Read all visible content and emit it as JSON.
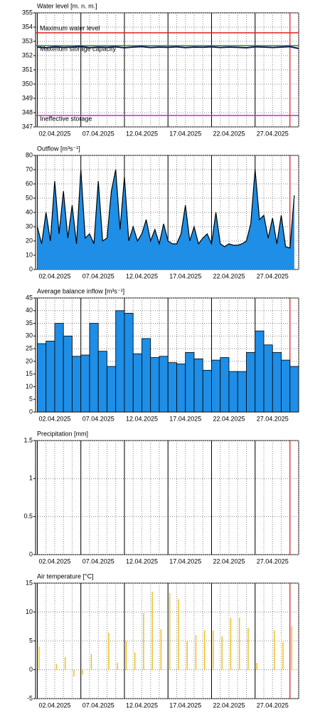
{
  "chart_data": [
    {
      "type": "line",
      "title": "Water level [m. n. m.]",
      "x": [
        0,
        1,
        2,
        3,
        4,
        5,
        6,
        7,
        8,
        9,
        10,
        11,
        12,
        13,
        14,
        15,
        16,
        17,
        18,
        19,
        20,
        21,
        22,
        23,
        24,
        25,
        26,
        27,
        28,
        29,
        30
      ],
      "values": [
        352.6,
        352.55,
        352.62,
        352.58,
        352.6,
        352.64,
        352.56,
        352.6,
        352.58,
        352.62,
        352.55,
        352.6,
        352.63,
        352.57,
        352.6,
        352.58,
        352.62,
        352.56,
        352.6,
        352.59,
        352.62,
        352.57,
        352.6,
        352.58,
        352.55,
        352.62,
        352.6,
        352.57,
        352.6,
        352.63,
        352.5
      ],
      "color": "#14145a",
      "ylim": [
        347,
        355
      ],
      "yticks": [
        347,
        348,
        349,
        350,
        351,
        352,
        353,
        354,
        355
      ],
      "xlim": [
        -0.2,
        30
      ],
      "xticks": [
        {
          "value": 0,
          "label": "02.04.2025"
        },
        {
          "value": 5,
          "label": "07.04.2025"
        },
        {
          "value": 10,
          "label": "12.04.2025"
        },
        {
          "value": 15,
          "label": "17.04.2025"
        },
        {
          "value": 20,
          "label": "22.04.2025"
        },
        {
          "value": 25,
          "label": "27.04.2025"
        }
      ],
      "x_minor_step": 1,
      "now_line": 29,
      "reference_lines": [
        {
          "label": "Maximum water level",
          "value": 353.6,
          "color": "#e02020"
        },
        {
          "label": "Maximum storage capacity",
          "value": 352.7,
          "color": "#2e8b2e"
        },
        {
          "label": "Ineffective storage",
          "value": 347.8,
          "color": "#d020d0"
        }
      ]
    },
    {
      "type": "area",
      "title": "Outflow [m³s⁻¹]",
      "x": [
        0,
        0.5,
        1,
        1.5,
        2,
        2.5,
        3,
        3.5,
        4,
        4.5,
        5,
        5.5,
        6,
        6.5,
        7,
        7.5,
        8,
        8.5,
        9,
        9.5,
        10,
        10.5,
        11,
        11.5,
        12,
        12.5,
        13,
        13.5,
        14,
        14.5,
        15,
        15.5,
        16,
        16.5,
        17,
        17.5,
        18,
        18.5,
        19,
        19.5,
        20,
        20.5,
        21,
        21.5,
        22,
        22.5,
        23,
        23.5,
        24,
        24.5,
        25,
        25.5,
        26,
        26.5,
        27,
        27.5,
        28,
        28.5,
        29,
        29.5
      ],
      "values": [
        30,
        18,
        40,
        20,
        62,
        25,
        55,
        22,
        45,
        18,
        70,
        22,
        25,
        18,
        62,
        20,
        22,
        55,
        70,
        28,
        65,
        20,
        30,
        20,
        25,
        35,
        20,
        28,
        18,
        32,
        20,
        18,
        18,
        25,
        45,
        20,
        30,
        18,
        22,
        25,
        18,
        40,
        18,
        16,
        18,
        17,
        17,
        18,
        20,
        32,
        70,
        35,
        38,
        22,
        36,
        18,
        38,
        16,
        15,
        52
      ],
      "color": "#1e8ee6",
      "line_color": "#000000",
      "ylim": [
        0,
        80
      ],
      "yticks": [
        0,
        10,
        20,
        30,
        40,
        50,
        60,
        70,
        80
      ],
      "xlim": [
        -0.2,
        30
      ],
      "xticks": [
        {
          "value": 0,
          "label": "02.04.2025"
        },
        {
          "value": 5,
          "label": "07.04.2025"
        },
        {
          "value": 10,
          "label": "12.04.2025"
        },
        {
          "value": 15,
          "label": "17.04.2025"
        },
        {
          "value": 20,
          "label": "22.04.2025"
        },
        {
          "value": 25,
          "label": "27.04.2025"
        }
      ],
      "x_minor_step": 1,
      "now_line": 29
    },
    {
      "type": "step",
      "title": "Average balance inflow  [m³s⁻¹]",
      "x": [
        0,
        1,
        2,
        3,
        4,
        5,
        6,
        7,
        8,
        9,
        10,
        11,
        12,
        13,
        14,
        15,
        16,
        17,
        18,
        19,
        20,
        21,
        22,
        23,
        24,
        25,
        26,
        27,
        28,
        29
      ],
      "values": [
        27,
        28,
        35,
        30,
        22,
        22.5,
        35,
        24,
        18,
        40,
        39,
        23,
        29,
        21.5,
        22,
        19.5,
        19,
        23.5,
        21,
        16.5,
        20.5,
        21.5,
        16,
        16,
        23.5,
        32,
        26.5,
        23.5,
        20.5,
        18
      ],
      "color": "#1e8ee6",
      "line_color": "#000000",
      "ylim": [
        0,
        45
      ],
      "yticks": [
        0,
        5,
        10,
        15,
        20,
        25,
        30,
        35,
        40,
        45
      ],
      "xlim": [
        -0.2,
        30
      ],
      "xticks": [
        {
          "value": 0,
          "label": "02.04.2025"
        },
        {
          "value": 5,
          "label": "07.04.2025"
        },
        {
          "value": 10,
          "label": "12.04.2025"
        },
        {
          "value": 15,
          "label": "17.04.2025"
        },
        {
          "value": 20,
          "label": "22.04.2025"
        },
        {
          "value": 25,
          "label": "27.04.2025"
        }
      ],
      "x_minor_step": 1,
      "now_line": 29
    },
    {
      "type": "bar",
      "title": "Precipitation [mm]",
      "x": [],
      "values": [],
      "color": "#1e8ee6",
      "ylim": [
        0,
        1.5
      ],
      "yticks": [
        0,
        0.5,
        1,
        1.5
      ],
      "xlim": [
        -0.2,
        30
      ],
      "xticks": [
        {
          "value": 0,
          "label": "02.04.2025"
        },
        {
          "value": 5,
          "label": "07.04.2025"
        },
        {
          "value": 10,
          "label": "12.04.2025"
        },
        {
          "value": 15,
          "label": "17.04.2025"
        },
        {
          "value": 20,
          "label": "22.04.2025"
        },
        {
          "value": 25,
          "label": "27.04.2025"
        }
      ],
      "x_minor_step": 1,
      "now_line": 29
    },
    {
      "type": "bar",
      "title": "Air temperature [°C]",
      "x": [
        0.2,
        2.2,
        3.2,
        4.2,
        5.2,
        6.2,
        8.2,
        9.2,
        10.2,
        11.2,
        12.2,
        13.2,
        14.2,
        15.2,
        16.2,
        17.2,
        18.2,
        19.2,
        20.2,
        21.2,
        22.2,
        23.2,
        24.2,
        25.2,
        27.2,
        28.2,
        29.2
      ],
      "values": [
        4,
        1,
        2.2,
        -1.2,
        -0.8,
        2.7,
        6.4,
        1.2,
        5,
        3,
        9.8,
        13.5,
        7,
        13.3,
        12.2,
        5,
        6,
        6.8,
        6.8,
        5.8,
        9,
        9,
        7.3,
        1.2,
        6.8,
        4.8,
        7.5
      ],
      "color": "#f0c020",
      "ylim": [
        -5,
        15
      ],
      "yticks": [
        -5,
        0,
        5,
        10,
        15
      ],
      "xlim": [
        -0.2,
        30
      ],
      "xticks": [
        {
          "value": 0,
          "label": "02.04.2025"
        },
        {
          "value": 5,
          "label": "07.04.2025"
        },
        {
          "value": 10,
          "label": "12.04.2025"
        },
        {
          "value": 15,
          "label": "17.04.2025"
        },
        {
          "value": 20,
          "label": "22.04.2025"
        },
        {
          "value": 25,
          "label": "27.04.2025"
        }
      ],
      "x_minor_step": 1,
      "now_line": 29
    }
  ]
}
